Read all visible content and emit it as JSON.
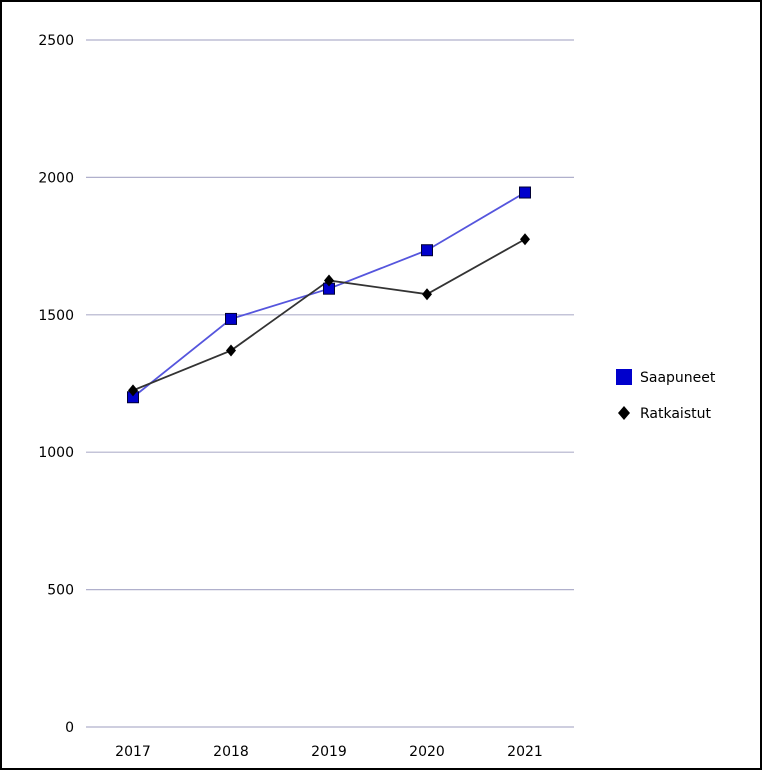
{
  "chart_data": {
    "type": "line",
    "categories": [
      "2017",
      "2018",
      "2019",
      "2020",
      "2021"
    ],
    "ylim": [
      0,
      2500
    ],
    "yticks": [
      0,
      500,
      1000,
      1500,
      2000,
      2500
    ],
    "grid": true,
    "legend_position": "right",
    "series": [
      {
        "name": "Saapuneet",
        "values": [
          1200,
          1485,
          1595,
          1735,
          1945
        ],
        "color": "#0000cc",
        "line_color": "#5555dd",
        "marker": "square"
      },
      {
        "name": "Ratkaistut",
        "values": [
          1225,
          1370,
          1625,
          1575,
          1775
        ],
        "color": "#000000",
        "line_color": "#333333",
        "marker": "diamond"
      }
    ]
  }
}
